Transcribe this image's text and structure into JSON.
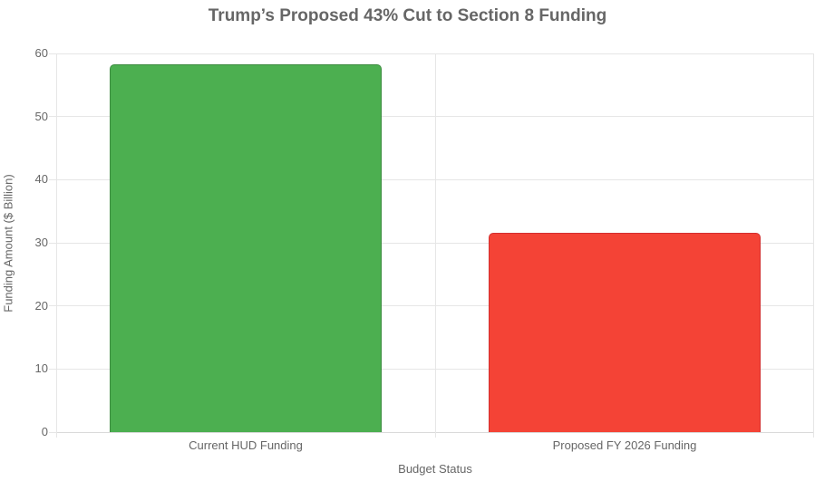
{
  "chart_data": {
    "type": "bar",
    "title": "Trump’s Proposed 43% Cut to Section 8 Funding",
    "xlabel": "Budget Status",
    "ylabel": "Funding Amount ($ Billion)",
    "categories": [
      "Current HUD Funding",
      "Proposed FY 2026 Funding"
    ],
    "values": [
      58.3,
      31.6
    ],
    "bar_colors": [
      "#4caf50",
      "#f44336"
    ],
    "bar_border_colors": [
      "#3d8b40",
      "#d32f2f"
    ],
    "ylim": [
      0,
      60
    ],
    "yticks": [
      0,
      10,
      20,
      30,
      40,
      50,
      60
    ],
    "grid": "on",
    "legend": "none"
  }
}
